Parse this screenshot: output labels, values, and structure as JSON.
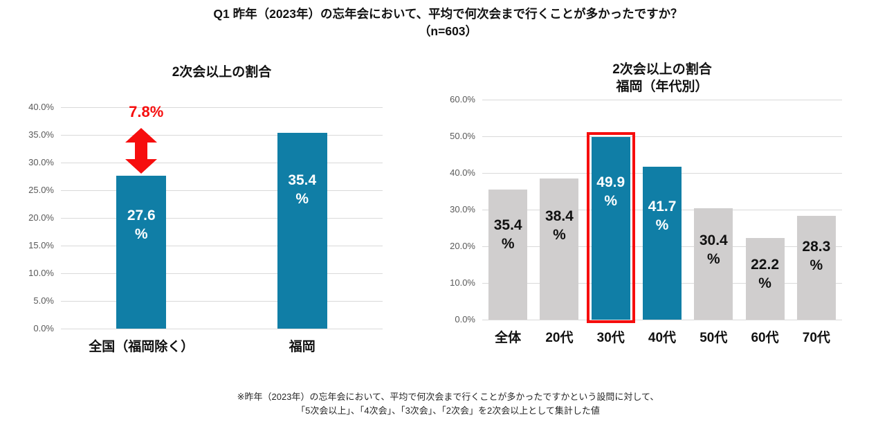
{
  "header": {
    "title_line1": "Q1 昨年（2023年）の忘年会において、平均で何次会まで行くことが多かったですか？",
    "title_line2": "（n=603）"
  },
  "footnote": {
    "line1": "※昨年（2023年）の忘年会において、平均で何次会まで行くことが多かったですかという設問に対して、",
    "line2": "「5次会以上」、「4次会」、「3次会」、「2次会」を2次会以上として集計した値"
  },
  "colors": {
    "teal": "#107EA6",
    "gray": "#D0CECE",
    "red": "#F60D0D",
    "gridline": "#D9D9D9",
    "axis_text": "#595959",
    "label_dark": "#111111",
    "label_light": "#FFFFFF"
  },
  "chart_data": [
    {
      "type": "bar",
      "title": "2次会以上の割合",
      "categories": [
        "全国（福岡除く）",
        "福岡"
      ],
      "values": [
        27.6,
        35.4
      ],
      "bar_colors": [
        "teal",
        "teal"
      ],
      "data_labels": [
        "27.6\n%",
        "35.4\n%"
      ],
      "ylim": [
        0,
        40
      ],
      "ytick_step": 5,
      "ytick_labels": [
        "0.0%",
        "5.0%",
        "10.0%",
        "15.0%",
        "20.0%",
        "25.0%",
        "30.0%",
        "35.0%",
        "40.0%"
      ],
      "grid": true,
      "legend": false,
      "annotation": {
        "text": "7.8%",
        "shape": "double-headed-vertical-arrow",
        "color": "red",
        "target_category": "全国（福岡除く）"
      }
    },
    {
      "type": "bar",
      "title": "2次会以上の割合",
      "subtitle": "福岡（年代別）",
      "categories": [
        "全体",
        "20代",
        "30代",
        "40代",
        "50代",
        "60代",
        "70代"
      ],
      "values": [
        35.4,
        38.4,
        49.9,
        41.7,
        30.4,
        22.2,
        28.3
      ],
      "bar_colors": [
        "gray",
        "gray",
        "teal",
        "teal",
        "gray",
        "gray",
        "gray"
      ],
      "data_labels": [
        "35.4\n%",
        "38.4\n%",
        "49.9\n%",
        "41.7\n%",
        "30.4\n%",
        "22.2\n%",
        "28.3\n%"
      ],
      "ylim": [
        0,
        60
      ],
      "ytick_step": 10,
      "ytick_labels": [
        "0.0%",
        "10.0%",
        "20.0%",
        "30.0%",
        "40.0%",
        "50.0%",
        "60.0%"
      ],
      "grid": true,
      "legend": false,
      "highlight": {
        "index": 2,
        "style": "red-outline"
      }
    }
  ]
}
